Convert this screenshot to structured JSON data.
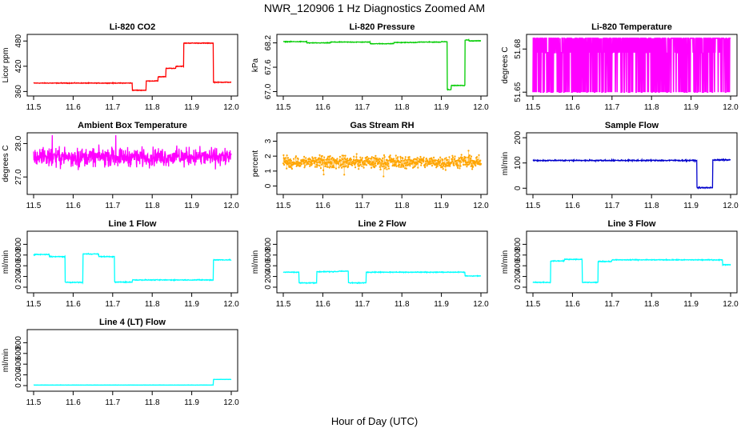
{
  "figure": {
    "title": "NWR_120906  1 Hz Diagnostics Zoomed AM",
    "xlabel": "Hour of Day (UTC)"
  },
  "chart_data": [
    {
      "type": "line",
      "title": "Li-820 CO2",
      "ylabel": "Licor ppm",
      "color": "#ff0000",
      "xlim": [
        11.5,
        12.0
      ],
      "ylim": [
        355,
        490
      ],
      "x_ticks": [
        "11.5",
        "11.6",
        "11.7",
        "11.8",
        "11.9",
        "12.0"
      ],
      "y_ticks": [
        {
          "v": 360,
          "t": "360"
        },
        {
          "v": 420,
          "t": "420"
        },
        {
          "v": 480,
          "t": "480"
        }
      ],
      "noise": 0.8,
      "segments": [
        [
          11.5,
          11.75,
          380
        ],
        [
          11.75,
          11.785,
          363
        ],
        [
          11.785,
          11.815,
          385
        ],
        [
          11.815,
          11.835,
          395
        ],
        [
          11.835,
          11.86,
          415
        ],
        [
          11.86,
          11.88,
          420
        ],
        [
          11.88,
          11.955,
          475
        ],
        [
          11.955,
          12.0,
          382
        ]
      ]
    },
    {
      "type": "line",
      "title": "Li-820 Pressure",
      "ylabel": "kPa",
      "color": "#00cc00",
      "xlim": [
        11.5,
        12.0
      ],
      "ylim": [
        66.95,
        68.35
      ],
      "x_ticks": [
        "11.5",
        "11.6",
        "11.7",
        "11.8",
        "11.9",
        "12.0"
      ],
      "y_ticks": [
        {
          "v": 67.0,
          "t": "67.0"
        },
        {
          "v": 67.6,
          "t": "67.6"
        },
        {
          "v": 68.2,
          "t": "68.2"
        }
      ],
      "noise": 0.008,
      "segments": [
        [
          11.5,
          11.56,
          68.23
        ],
        [
          11.56,
          11.62,
          68.2
        ],
        [
          11.62,
          11.72,
          68.22
        ],
        [
          11.72,
          11.78,
          68.18
        ],
        [
          11.78,
          11.84,
          68.21
        ],
        [
          11.84,
          11.9,
          68.22
        ],
        [
          11.9,
          11.915,
          68.23
        ],
        [
          11.915,
          11.925,
          67.05
        ],
        [
          11.925,
          11.96,
          67.15
        ],
        [
          11.96,
          11.97,
          68.27
        ],
        [
          11.97,
          12.0,
          68.25
        ]
      ]
    },
    {
      "type": "line",
      "title": "Li-820 Temperature",
      "ylabel": "degrees C",
      "color": "#ff00ff",
      "xlim": [
        11.5,
        12.0
      ],
      "ylim": [
        51.649,
        51.6885
      ],
      "x_ticks": [
        "11.5",
        "11.6",
        "11.7",
        "11.8",
        "11.9",
        "12.0"
      ],
      "y_ticks": [
        {
          "v": 51.65,
          "t": "51.65"
        },
        {
          "v": 51.68,
          "t": "51.68"
        }
      ],
      "states": [
        51.65,
        51.6775,
        51.6875
      ],
      "state_probs": [
        0.28,
        0.16,
        0.56
      ]
    },
    {
      "type": "line",
      "title": "Ambient Box Temperature",
      "ylabel": "degrees C",
      "color": "#ff00ff",
      "xlim": [
        11.5,
        12.0
      ],
      "ylim": [
        26.55,
        28.25
      ],
      "x_ticks": [
        "11.5",
        "11.6",
        "11.7",
        "11.8",
        "11.9",
        "12.0"
      ],
      "y_ticks": [
        {
          "v": 27.0,
          "t": "27.0"
        },
        {
          "v": 28.0,
          "t": "28.0"
        }
      ],
      "noise": 0.3,
      "mean": 27.6
    },
    {
      "type": "scatter",
      "title": "Gas Stream RH",
      "ylabel": "percent",
      "color": "#ffa500",
      "xlim": [
        11.5,
        12.0
      ],
      "ylim": [
        -0.4,
        3.4
      ],
      "x_ticks": [
        "11.5",
        "11.6",
        "11.7",
        "11.8",
        "11.9",
        "12.0"
      ],
      "y_ticks": [
        {
          "v": 0,
          "t": "0"
        },
        {
          "v": 1,
          "t": "1"
        },
        {
          "v": 2,
          "t": "2"
        },
        {
          "v": 3,
          "t": "3"
        }
      ],
      "noise": 0.45,
      "mean": 1.6
    },
    {
      "type": "line",
      "title": "Sample Flow",
      "ylabel": "ml/min",
      "color": "#0000cc",
      "xlim": [
        11.5,
        12.0
      ],
      "ylim": [
        -15,
        210
      ],
      "x_ticks": [
        "11.5",
        "11.6",
        "11.7",
        "11.8",
        "11.9",
        "12.0"
      ],
      "y_ticks": [
        {
          "v": 0,
          "t": "0"
        },
        {
          "v": 100,
          "t": "100"
        },
        {
          "v": 200,
          "t": "200"
        }
      ],
      "noise": 2.5,
      "segments": [
        [
          11.5,
          11.915,
          110
        ],
        [
          11.915,
          11.955,
          2
        ],
        [
          11.955,
          12.0,
          112
        ]
      ]
    },
    {
      "type": "line",
      "title": "Line 1 Flow",
      "ylabel": "ml/min",
      "color": "#00ffff",
      "xlim": [
        11.5,
        12.0
      ],
      "ylim": [
        -60,
        1000
      ],
      "x_ticks": [
        "11.5",
        "11.6",
        "11.7",
        "11.8",
        "11.9",
        "12.0"
      ],
      "y_ticks": [
        {
          "v": 0,
          "t": "0"
        },
        {
          "v": 200,
          "t": "200"
        },
        {
          "v": 400,
          "t": "400"
        },
        {
          "v": 600,
          "t": "600"
        },
        {
          "v": 800,
          "t": "800"
        }
      ],
      "noise": 8,
      "segments": [
        [
          11.5,
          11.54,
          610
        ],
        [
          11.54,
          11.58,
          570
        ],
        [
          11.58,
          11.625,
          90
        ],
        [
          11.625,
          11.665,
          620
        ],
        [
          11.665,
          11.705,
          570
        ],
        [
          11.705,
          11.75,
          95
        ],
        [
          11.75,
          11.955,
          135
        ],
        [
          11.955,
          12.0,
          510
        ]
      ]
    },
    {
      "type": "line",
      "title": "Line 2 Flow",
      "ylabel": "ml/min",
      "color": "#00ffff",
      "xlim": [
        11.5,
        12.0
      ],
      "ylim": [
        -60,
        1000
      ],
      "x_ticks": [
        "11.5",
        "11.6",
        "11.7",
        "11.8",
        "11.9",
        "12.0"
      ],
      "y_ticks": [
        {
          "v": 0,
          "t": "0"
        },
        {
          "v": 200,
          "t": "200"
        },
        {
          "v": 400,
          "t": "400"
        },
        {
          "v": 600,
          "t": "600"
        },
        {
          "v": 800,
          "t": "800"
        }
      ],
      "noise": 8,
      "segments": [
        [
          11.5,
          11.54,
          280
        ],
        [
          11.54,
          11.585,
          80
        ],
        [
          11.585,
          11.64,
          290
        ],
        [
          11.64,
          11.665,
          300
        ],
        [
          11.665,
          11.71,
          80
        ],
        [
          11.71,
          11.96,
          280
        ],
        [
          11.96,
          12.0,
          210
        ]
      ]
    },
    {
      "type": "line",
      "title": "Line 3 Flow",
      "ylabel": "ml/min",
      "color": "#00ffff",
      "xlim": [
        11.5,
        12.0
      ],
      "ylim": [
        -60,
        1000
      ],
      "x_ticks": [
        "11.5",
        "11.6",
        "11.7",
        "11.8",
        "11.9",
        "12.0"
      ],
      "y_ticks": [
        {
          "v": 0,
          "t": "0"
        },
        {
          "v": 200,
          "t": "200"
        },
        {
          "v": 400,
          "t": "400"
        },
        {
          "v": 600,
          "t": "600"
        },
        {
          "v": 800,
          "t": "800"
        }
      ],
      "noise": 8,
      "segments": [
        [
          11.5,
          11.545,
          90
        ],
        [
          11.545,
          11.58,
          490
        ],
        [
          11.58,
          11.625,
          520
        ],
        [
          11.625,
          11.665,
          90
        ],
        [
          11.665,
          11.7,
          480
        ],
        [
          11.7,
          11.98,
          510
        ],
        [
          11.98,
          12.0,
          420
        ]
      ]
    },
    {
      "type": "line",
      "title": "Line 4 (LT) Flow",
      "ylabel": "ml/min",
      "color": "#00ffff",
      "xlim": [
        11.5,
        12.0
      ],
      "ylim": [
        -60,
        1000
      ],
      "x_ticks": [
        "11.5",
        "11.6",
        "11.7",
        "11.8",
        "11.9",
        "12.0"
      ],
      "y_ticks": [
        {
          "v": 0,
          "t": "0"
        },
        {
          "v": 200,
          "t": "200"
        },
        {
          "v": 400,
          "t": "400"
        },
        {
          "v": 600,
          "t": "600"
        },
        {
          "v": 800,
          "t": "800"
        }
      ],
      "noise": 2,
      "segments": [
        [
          11.5,
          11.955,
          10
        ],
        [
          11.955,
          12.0,
          115
        ]
      ]
    }
  ]
}
